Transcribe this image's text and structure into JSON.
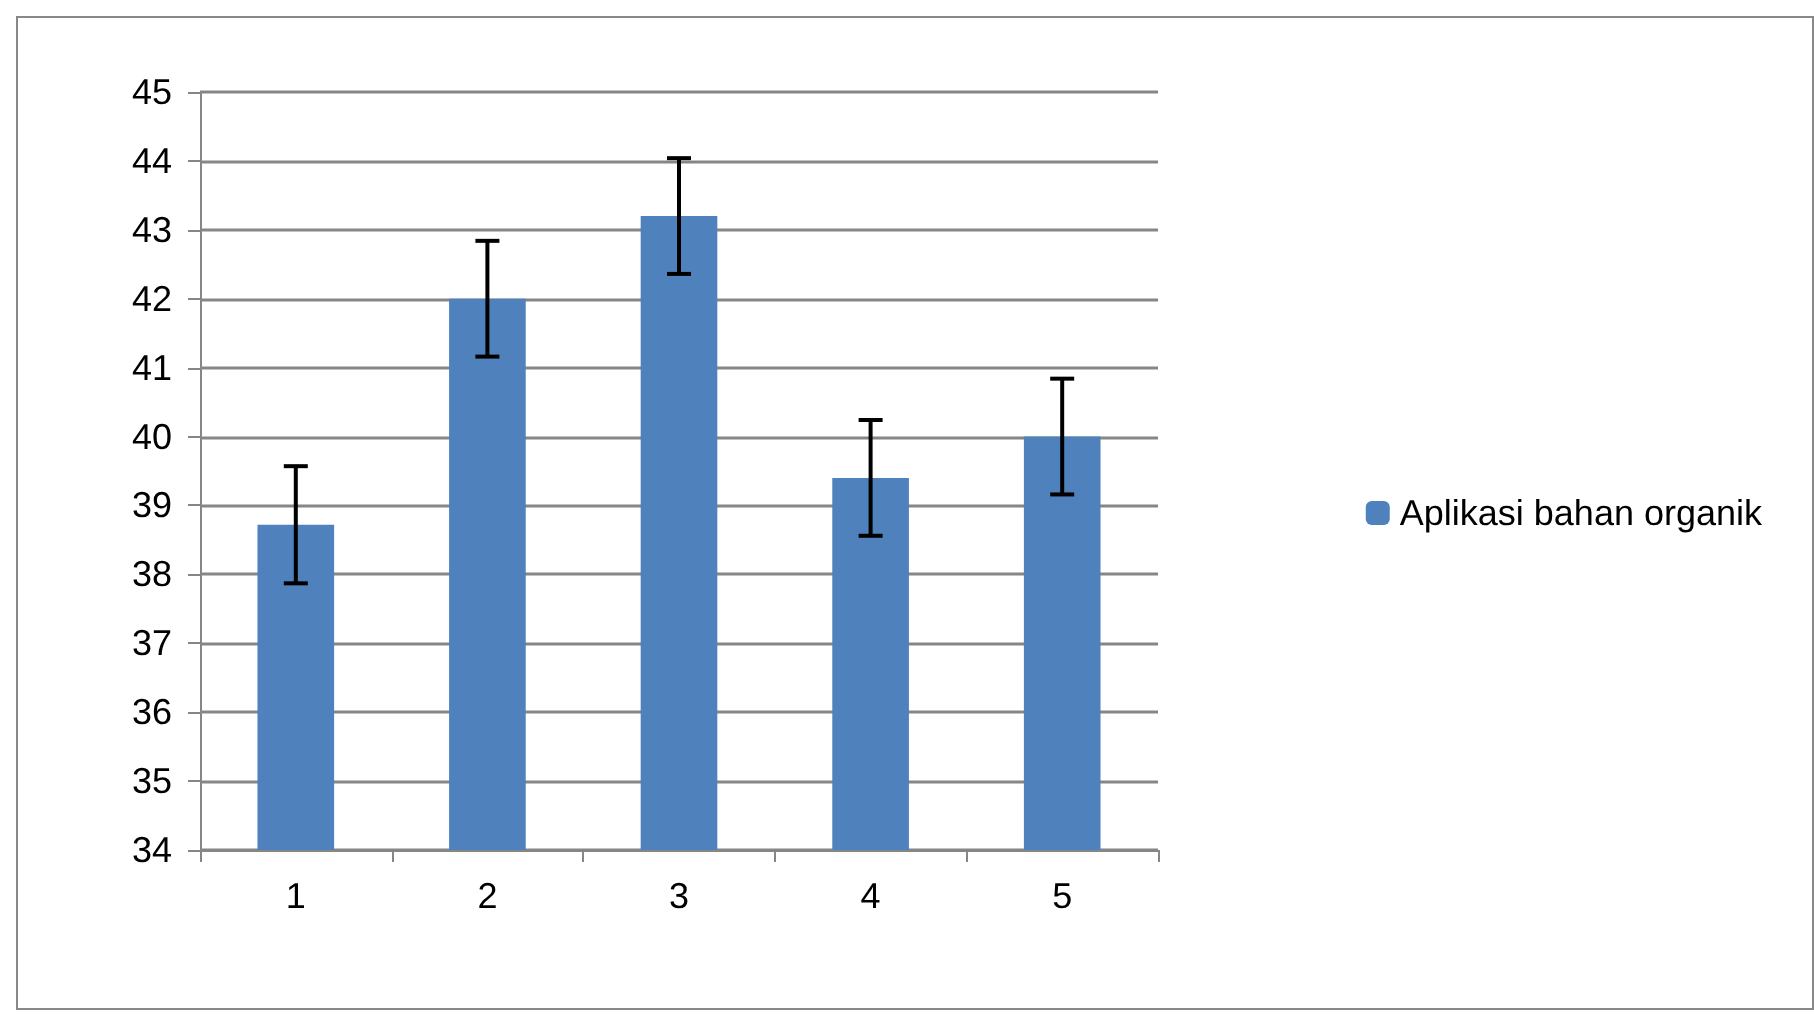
{
  "chart_data": {
    "type": "bar",
    "categories": [
      "1",
      "2",
      "3",
      "4",
      "5"
    ],
    "series": [
      {
        "name": "Aplikasi bahan organik",
        "color": "#4f81bd",
        "values": [
          38.72,
          42.0,
          43.2,
          39.4,
          40.0
        ],
        "errors": [
          0.85,
          0.84,
          0.84,
          0.84,
          0.84
        ]
      }
    ],
    "ylim": [
      34,
      45
    ],
    "yticks": [
      34,
      35,
      36,
      37,
      38,
      39,
      40,
      41,
      42,
      43,
      44,
      45
    ],
    "grid": "y",
    "legend": "right"
  }
}
